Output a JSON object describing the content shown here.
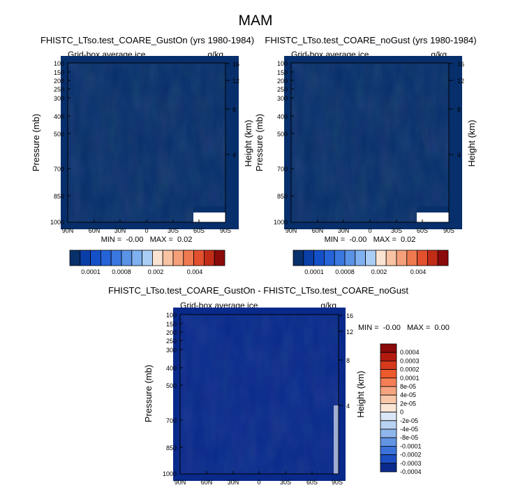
{
  "figure_title": "MAM",
  "chart_data": [
    {
      "type": "heatmap",
      "title": "FHISTC_LTso.test_COARE_GustOn (yrs 1980-1984)",
      "left_label": "Grid-box average ice",
      "right_label": "g/kg",
      "ylabel": "Pressure (mb)",
      "ylabel_right": "Height (km)",
      "x_ticks": [
        "90N",
        "60N",
        "30N",
        "0",
        "30S",
        "60S",
        "90S"
      ],
      "y_ticks": [
        "100",
        "150",
        "200",
        "250",
        "300",
        "400",
        "500",
        "700",
        "850",
        "1000"
      ],
      "height_ticks": [
        "16",
        "12",
        "8",
        "4"
      ],
      "ylim": [
        1000,
        100
      ],
      "stats": "MIN =  -0.00   MAX =  0.02",
      "colorbar_labels": [
        "0.0001",
        "0.0008",
        "0.002",
        "0.004"
      ]
    },
    {
      "type": "heatmap",
      "title": "FHISTC_LTso.test_COARE_noGust (yrs 1980-1984)",
      "left_label": "Grid-box average ice",
      "right_label": "g/kg",
      "ylabel": "Pressure (mb)",
      "ylabel_right": "Height (km)",
      "x_ticks": [
        "90N",
        "60N",
        "30N",
        "0",
        "30S",
        "60S",
        "90S"
      ],
      "y_ticks": [
        "100",
        "150",
        "200",
        "250",
        "300",
        "400",
        "500",
        "700",
        "850",
        "1000"
      ],
      "height_ticks": [
        "16",
        "12",
        "8",
        "4"
      ],
      "ylim": [
        1000,
        100
      ],
      "stats": "MIN =  -0.00   MAX =  0.02",
      "colorbar_labels": [
        "0.0001",
        "0.0008",
        "0.002",
        "0.004"
      ]
    },
    {
      "type": "heatmap",
      "title": "FHISTC_LTso.test_COARE_GustOn - FHISTC_LTso.test_COARE_noGust",
      "left_label": "Grid-box average ice",
      "right_label": "g/kg",
      "ylabel": "Pressure (mb)",
      "ylabel_right": "Height (km)",
      "x_ticks": [
        "90N",
        "60N",
        "30N",
        "0",
        "30S",
        "60S",
        "90S"
      ],
      "y_ticks": [
        "100",
        "150",
        "200",
        "250",
        "300",
        "400",
        "500",
        "700",
        "850",
        "1000"
      ],
      "height_ticks": [
        "16",
        "12",
        "8",
        "4"
      ],
      "ylim": [
        1000,
        100
      ],
      "stats": "MIN =  -0.00   MAX =  0.00",
      "colorbar_labels": [
        "0.0004",
        "0.0003",
        "0.0002",
        "0.0001",
        "8e-05",
        "4e-05",
        "2e-05",
        "0",
        "-2e-05",
        "-4e-05",
        "-8e-05",
        "-0.0001",
        "-0.0002",
        "-0.0003",
        "-0.0004"
      ]
    }
  ],
  "colors": {
    "seq": [
      "#08306b",
      "#0b3fa8",
      "#1450c8",
      "#2563d8",
      "#3a78e0",
      "#5a92e6",
      "#7fb0ef",
      "#a9cdf5",
      "#fbe3d1",
      "#f8c3a3",
      "#f5a07a",
      "#ef7a50",
      "#e2502e",
      "#c12c17",
      "#8b0a0a"
    ],
    "div": [
      "#8b0a0a",
      "#b2190f",
      "#d43a1b",
      "#ec5a2d",
      "#f47f55",
      "#f6a47f",
      "#f8c6a8",
      "#fbe6d6",
      "#dbe7f6",
      "#b8d2f2",
      "#8fb6ec",
      "#6194e3",
      "#3a72da",
      "#1b4fc3",
      "#0a2a8c"
    ]
  }
}
